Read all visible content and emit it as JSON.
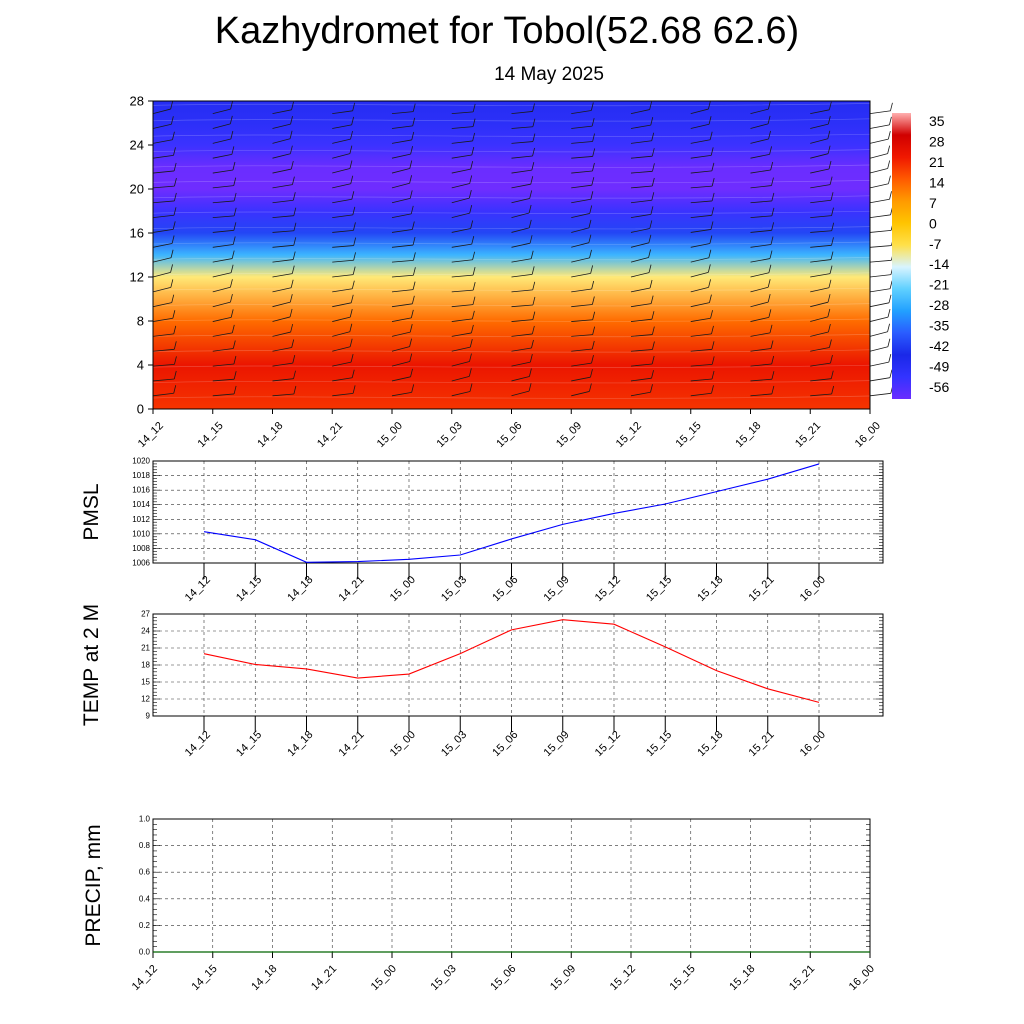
{
  "title": "Kazhydromet for Tobol(52.68 62.6)",
  "date": "14 May 2025",
  "time_labels": [
    "14_12",
    "14_15",
    "14_18",
    "14_21",
    "15_00",
    "15_03",
    "15_06",
    "15_09",
    "15_12",
    "15_15",
    "15_18",
    "15_21",
    "16_00"
  ],
  "chart_data": [
    {
      "type": "heatmap",
      "description_source": "vertical cross-section of temperature with wind barbs",
      "y_ticks": [
        0,
        4,
        8,
        12,
        16,
        20,
        24,
        28
      ],
      "ylim": [
        0,
        28
      ],
      "colorbar_labels": [
        "35",
        "28",
        "21",
        "14",
        "7",
        "0",
        "-7",
        "-14",
        "-21",
        "-28",
        "-35",
        "-42",
        "-49",
        "-56"
      ],
      "levels_temperature_profile": [
        {
          "level": 0,
          "value": 18
        },
        {
          "level": 4,
          "value": 22
        },
        {
          "level": 8,
          "value": 12
        },
        {
          "level": 12,
          "value": -8
        },
        {
          "level": 14,
          "value": -25
        },
        {
          "level": 16,
          "value": -38
        },
        {
          "level": 18,
          "value": -50
        },
        {
          "level": 20,
          "value": -57
        },
        {
          "level": 22,
          "value": -56
        },
        {
          "level": 24,
          "value": -50
        },
        {
          "level": 26,
          "value": -47
        },
        {
          "level": 28,
          "value": -45
        }
      ]
    },
    {
      "type": "line",
      "ylabel": "PMSL",
      "y_ticks": [
        1006,
        1008,
        1010,
        1012,
        1014,
        1016,
        1018,
        1020
      ],
      "ylim": [
        1006,
        1020
      ],
      "line_color": "#0000ff",
      "values": [
        1010.3,
        1009.2,
        1006.1,
        1006.2,
        1006.5,
        1007.1,
        1009.3,
        1011.3,
        1012.8,
        1014.1,
        1015.8,
        1017.5,
        1019.6
      ]
    },
    {
      "type": "line",
      "ylabel": "TEMP at 2 M",
      "y_ticks": [
        9,
        12,
        15,
        18,
        21,
        24,
        27
      ],
      "ylim": [
        9,
        27
      ],
      "line_color": "#ff0000",
      "values": [
        20.0,
        18.1,
        17.3,
        15.7,
        16.4,
        20.0,
        24.2,
        26.0,
        25.2,
        21.2,
        17.0,
        13.8,
        11.4
      ]
    },
    {
      "type": "line",
      "ylabel": "PRECIP, mm",
      "y_ticks": [
        "0.0",
        "0.2",
        "0.4",
        "0.6",
        "0.8",
        "1.0"
      ],
      "ylim": [
        0,
        1
      ],
      "line_color": "#006400",
      "values": [
        0,
        0,
        0,
        0,
        0,
        0,
        0,
        0,
        0,
        0,
        0,
        0,
        0
      ]
    }
  ]
}
